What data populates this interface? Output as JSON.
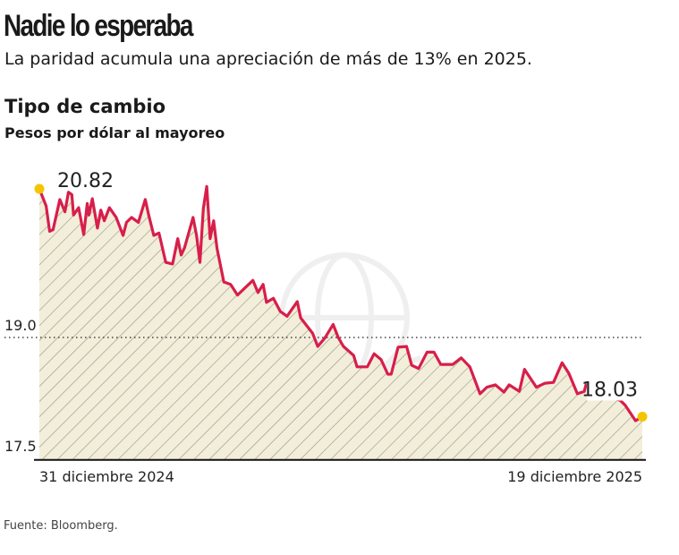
{
  "header": {
    "title": "Nadie lo esperaba",
    "subtitle": "La paridad acumula una apreciación de más de 13% en 2025."
  },
  "footer": {
    "source": "Fuente: Bloomberg."
  },
  "colors": {
    "line": "#d81e4b",
    "fill": "#f2eed9",
    "hatch": "#9a9a8c",
    "marker": "#f5c400"
  },
  "chart_data": {
    "type": "area",
    "title": "Tipo de cambio",
    "ylabel": "Pesos por dólar al mayoreo",
    "ylim": [
      17.5,
      20.85
    ],
    "y_ticks": [
      "19.0",
      "17.5"
    ],
    "y_ref_line": 19.0,
    "x_tick_labels": [
      "31 diciembre 2024",
      "19 diciembre 2025"
    ],
    "annotations": [
      {
        "date": "2024-12-31",
        "value": 20.82,
        "label": "20.82"
      },
      {
        "date": "2025-12-19",
        "value": 18.03,
        "label": "18.03"
      }
    ],
    "series": [
      {
        "x": [
          "2024-12-31",
          "2025-01-04",
          "2025-01-06",
          "2025-01-08",
          "2025-01-12",
          "2025-01-15",
          "2025-01-17",
          "2025-01-19",
          "2025-01-20",
          "2025-01-23",
          "2025-01-26",
          "2025-01-28",
          "2025-01-29",
          "2025-01-31",
          "2025-02-03",
          "2025-02-05",
          "2025-02-07",
          "2025-02-10",
          "2025-02-14",
          "2025-02-18",
          "2025-02-20",
          "2025-02-23",
          "2025-02-27",
          "2025-03-03",
          "2025-03-05",
          "2025-03-08",
          "2025-03-11",
          "2025-03-15",
          "2025-03-19",
          "2025-03-22",
          "2025-03-24",
          "2025-03-26",
          "2025-03-31",
          "2025-04-02",
          "2025-04-04",
          "2025-04-06",
          "2025-04-08",
          "2025-04-10",
          "2025-04-12",
          "2025-04-14",
          "2025-04-18",
          "2025-04-22",
          "2025-04-26",
          "2025-04-30",
          "2025-05-05",
          "2025-05-08",
          "2025-05-11",
          "2025-05-13",
          "2025-05-17",
          "2025-05-21",
          "2025-05-25",
          "2025-05-28",
          "2025-05-31",
          "2025-06-02",
          "2025-06-09",
          "2025-06-12",
          "2025-06-16",
          "2025-06-21",
          "2025-06-24",
          "2025-06-27",
          "2025-07-03",
          "2025-07-05",
          "2025-07-11",
          "2025-07-15",
          "2025-07-19",
          "2025-07-23",
          "2025-07-25",
          "2025-07-29",
          "2025-08-03",
          "2025-08-06",
          "2025-08-10",
          "2025-08-15",
          "2025-08-19",
          "2025-08-23",
          "2025-08-30",
          "2025-09-04",
          "2025-09-09",
          "2025-09-15",
          "2025-09-19",
          "2025-09-24",
          "2025-09-29",
          "2025-10-02",
          "2025-10-08",
          "2025-10-11",
          "2025-10-18",
          "2025-10-23",
          "2025-10-28",
          "2025-11-02",
          "2025-11-06",
          "2025-11-11",
          "2025-11-15",
          "2025-11-16",
          "2025-11-28",
          "2025-12-06",
          "2025-12-09",
          "2025-12-15",
          "2025-12-19"
        ],
        "values": [
          20.82,
          20.61,
          20.3,
          20.32,
          20.69,
          20.54,
          20.78,
          20.75,
          20.5,
          20.59,
          20.26,
          20.64,
          20.5,
          20.7,
          20.34,
          20.56,
          20.43,
          20.59,
          20.47,
          20.25,
          20.41,
          20.47,
          20.41,
          20.69,
          20.5,
          20.25,
          20.28,
          19.92,
          19.9,
          20.21,
          20.01,
          20.1,
          20.47,
          20.25,
          19.92,
          20.58,
          20.85,
          20.21,
          20.43,
          20.09,
          19.68,
          19.65,
          19.52,
          19.6,
          19.7,
          19.55,
          19.65,
          19.43,
          19.48,
          19.32,
          19.26,
          19.35,
          19.44,
          19.24,
          19.05,
          18.89,
          18.99,
          19.16,
          19.0,
          18.89,
          18.78,
          18.64,
          18.64,
          18.8,
          18.73,
          18.55,
          18.55,
          18.88,
          18.89,
          18.66,
          18.62,
          18.82,
          18.82,
          18.67,
          18.67,
          18.75,
          18.64,
          18.31,
          18.39,
          18.42,
          18.33,
          18.42,
          18.34,
          18.61,
          18.39,
          18.44,
          18.45,
          18.69,
          18.56,
          18.31,
          18.34,
          18.42,
          18.29,
          18.23,
          18.17,
          17.98,
          18.03
        ]
      }
    ]
  }
}
